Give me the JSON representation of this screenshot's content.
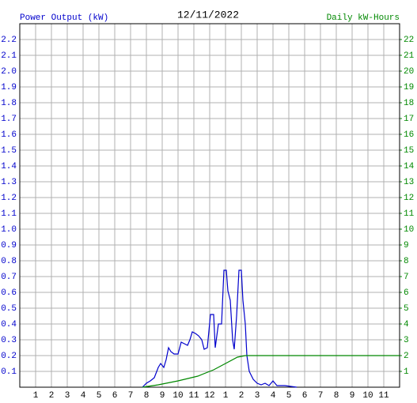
{
  "chart_data": {
    "type": "line",
    "title": "12/11/2022",
    "y_label": "Power Output (kW)",
    "y2_label": "Daily kW-Hours",
    "xlim": [
      0,
      24
    ],
    "xticks": [
      {
        "value": 1,
        "label": "1"
      },
      {
        "value": 2,
        "label": "2"
      },
      {
        "value": 3,
        "label": "3"
      },
      {
        "value": 4,
        "label": "4"
      },
      {
        "value": 5,
        "label": "5"
      },
      {
        "value": 6,
        "label": "6"
      },
      {
        "value": 7,
        "label": "7"
      },
      {
        "value": 8,
        "label": "8"
      },
      {
        "value": 9,
        "label": "9"
      },
      {
        "value": 10,
        "label": "10"
      },
      {
        "value": 11,
        "label": "11"
      },
      {
        "value": 12,
        "label": "12"
      },
      {
        "value": 13,
        "label": "1"
      },
      {
        "value": 14,
        "label": "2"
      },
      {
        "value": 15,
        "label": "3"
      },
      {
        "value": 16,
        "label": "4"
      },
      {
        "value": 17,
        "label": "5"
      },
      {
        "value": 18,
        "label": "6"
      },
      {
        "value": 19,
        "label": "7"
      },
      {
        "value": 20,
        "label": "8"
      },
      {
        "value": 21,
        "label": "9"
      },
      {
        "value": 22,
        "label": "10"
      },
      {
        "value": 23,
        "label": "11"
      }
    ],
    "ylim": [
      0,
      2.3
    ],
    "yticks": [
      0.1,
      0.2,
      0.3,
      0.4,
      0.5,
      0.6,
      0.7,
      0.8,
      0.9,
      {
        "value": 1,
        "label": "1.0"
      },
      1.1,
      1.2,
      1.3,
      1.4,
      1.5,
      1.6,
      1.7,
      1.8,
      1.9,
      {
        "value": 2,
        "label": "2.0"
      },
      2.1,
      2.2
    ],
    "y2lim": [
      0,
      23
    ],
    "y2ticks": [
      1,
      2,
      3,
      4,
      5,
      6,
      7,
      8,
      9,
      10,
      11,
      12,
      13,
      14,
      15,
      16,
      17,
      18,
      19,
      20,
      21,
      22
    ],
    "grid": true,
    "series": [
      {
        "color": "#0000cc",
        "x": [
          7.75,
          8,
          8.25,
          8.5,
          8.75,
          8.9,
          9.1,
          9.25,
          9.4,
          9.55,
          9.75,
          10,
          10.2,
          10.4,
          10.6,
          10.75,
          10.9,
          11.1,
          11.3,
          11.5,
          11.65,
          11.85,
          12.05,
          12.25,
          12.35,
          12.55,
          12.75,
          12.9,
          13.05,
          13.15,
          13.3,
          13.45,
          13.55,
          13.7,
          13.85,
          14,
          14.1,
          14.25,
          14.35,
          14.5,
          14.75,
          15,
          15.25,
          15.5,
          15.75,
          16,
          16.25,
          16.75,
          17.5
        ],
        "values": [
          0,
          0.025,
          0.04,
          0.06,
          0.125,
          0.15,
          0.125,
          0.175,
          0.25,
          0.225,
          0.21,
          0.21,
          0.285,
          0.275,
          0.265,
          0.3,
          0.35,
          0.34,
          0.325,
          0.3,
          0.24,
          0.25,
          0.46,
          0.46,
          0.25,
          0.4,
          0.4,
          0.74,
          0.74,
          0.61,
          0.55,
          0.3,
          0.24,
          0.45,
          0.74,
          0.74,
          0.55,
          0.4,
          0.2,
          0.1,
          0.05,
          0.025,
          0.015,
          0.025,
          0.01,
          0.04,
          0.01,
          0.01,
          0
        ]
      },
      {
        "color": "#008800",
        "axis": "y2",
        "x": [
          7.75,
          8.75,
          10,
          11.25,
          12.25,
          13,
          13.75,
          14.25,
          16.25,
          24
        ],
        "values": [
          0,
          0.15,
          0.4,
          0.7,
          1.1,
          1.5,
          1.9,
          2,
          2,
          2
        ]
      }
    ]
  }
}
